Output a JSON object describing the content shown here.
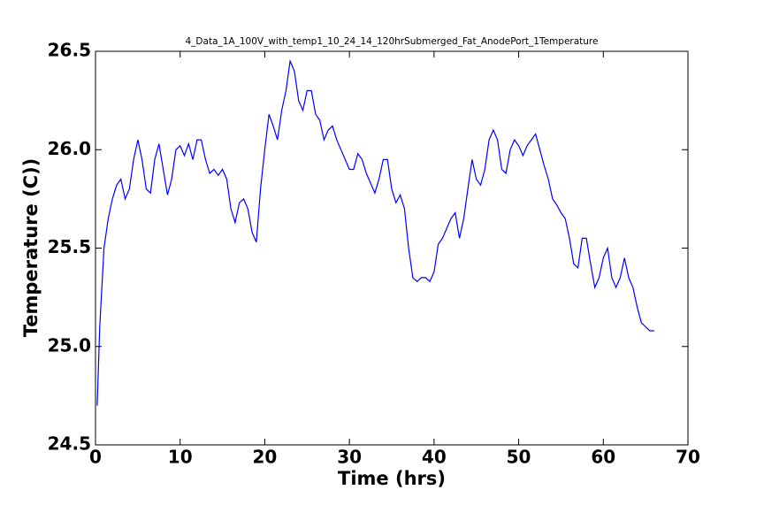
{
  "chart_data": {
    "type": "line",
    "title": "4_Data_1A_100V_with_temp1_10_24_14_120hrSubmerged_Fat_AnodePort_1Temperature",
    "xlabel": "Time (hrs)",
    "ylabel": "Temperature (C))",
    "xlim": [
      0,
      70
    ],
    "xticks": [
      0,
      10,
      20,
      30,
      40,
      50,
      60,
      70
    ],
    "ylim": [
      24.5,
      26.5
    ],
    "yticks": [
      24.5,
      {
        "value": 25,
        "label": "25.0"
      },
      25.5,
      {
        "value": 26,
        "label": "26.0"
      },
      26.5
    ],
    "series": [
      {
        "color": "#0000ff",
        "x": [
          0.2,
          0.5,
          1,
          1.5,
          2,
          2.5,
          3,
          3.5,
          4,
          4.5,
          5,
          5.5,
          6,
          6.5,
          7,
          7.5,
          8,
          8.5,
          9,
          9.5,
          10,
          10.5,
          11,
          11.5,
          12,
          12.5,
          13,
          13.5,
          14,
          14.5,
          15,
          15.5,
          16,
          16.5,
          17,
          17.5,
          18,
          18.5,
          19,
          19.5,
          20,
          20.5,
          21,
          21.5,
          22,
          22.5,
          23,
          23.5,
          24,
          24.5,
          25,
          25.5,
          26,
          26.5,
          27,
          27.5,
          28,
          28.5,
          29,
          29.5,
          30,
          30.5,
          31,
          31.5,
          32,
          32.5,
          33,
          33.5,
          34,
          34.5,
          35,
          35.5,
          36,
          36.5,
          37,
          37.5,
          38,
          38.5,
          39,
          39.5,
          40,
          40.5,
          41,
          41.5,
          42,
          42.5,
          43,
          43.5,
          44,
          44.5,
          45,
          45.5,
          46,
          46.5,
          47,
          47.5,
          48,
          48.5,
          49,
          49.5,
          50,
          50.5,
          51,
          51.5,
          52,
          52.5,
          53,
          53.5,
          54,
          54.5,
          55,
          55.5,
          56,
          56.5,
          57,
          57.5,
          58,
          58.5,
          59,
          59.5,
          60,
          60.5,
          61,
          61.5,
          62,
          62.5,
          63,
          63.5,
          64,
          64.5,
          65,
          65.5,
          66
        ],
        "values": [
          24.7,
          25.1,
          25.5,
          25.65,
          25.75,
          25.82,
          25.85,
          25.75,
          25.8,
          25.95,
          26.05,
          25.95,
          25.8,
          25.78,
          25.95,
          26.03,
          25.9,
          25.77,
          25.85,
          26.0,
          26.02,
          25.97,
          26.03,
          25.95,
          26.05,
          26.05,
          25.95,
          25.88,
          25.9,
          25.87,
          25.9,
          25.85,
          25.7,
          25.63,
          25.73,
          25.75,
          25.7,
          25.58,
          25.53,
          25.8,
          26.0,
          26.18,
          26.12,
          26.05,
          26.2,
          26.3,
          26.45,
          26.4,
          26.25,
          26.2,
          26.3,
          26.3,
          26.18,
          26.15,
          26.05,
          26.1,
          26.12,
          26.05,
          26.0,
          25.95,
          25.9,
          25.9,
          25.98,
          25.95,
          25.88,
          25.83,
          25.78,
          25.85,
          25.95,
          25.95,
          25.8,
          25.73,
          25.77,
          25.7,
          25.5,
          25.35,
          25.33,
          25.35,
          25.35,
          25.33,
          25.38,
          25.52,
          25.55,
          25.6,
          25.65,
          25.68,
          25.55,
          25.65,
          25.8,
          25.95,
          25.85,
          25.82,
          25.9,
          26.05,
          26.1,
          26.05,
          25.9,
          25.88,
          26.0,
          26.05,
          26.02,
          25.97,
          26.02,
          26.05,
          26.08,
          26.0,
          25.92,
          25.85,
          25.75,
          25.72,
          25.68,
          25.65,
          25.55,
          25.42,
          25.4,
          25.55,
          25.55,
          25.42,
          25.3,
          25.35,
          25.45,
          25.5,
          25.35,
          25.3,
          25.35,
          25.45,
          25.35,
          25.3,
          25.2,
          25.12,
          25.1,
          25.08,
          25.08
        ]
      }
    ]
  }
}
